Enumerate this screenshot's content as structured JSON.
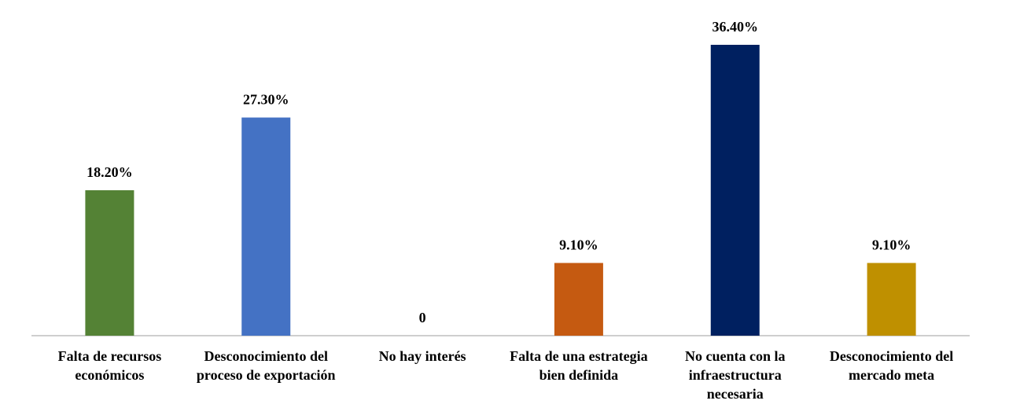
{
  "chart_data": {
    "type": "bar",
    "categories": [
      "Falta de recursos económicos",
      "Desconocimiento del proceso de exportación",
      "No hay interés",
      "Falta de una estrategia bien definida",
      "No cuenta con la infraestructura necesaria",
      "Desconocimiento del mercado meta"
    ],
    "values": [
      18.2,
      27.3,
      0,
      9.1,
      36.4,
      9.1
    ],
    "value_labels": [
      "18.20%",
      "27.30%",
      "0",
      "9.10%",
      "36.40%",
      "9.10%"
    ],
    "colors": [
      "#548235",
      "#4472c4",
      "#a5a5a5",
      "#c55a11",
      "#002060",
      "#bf9000"
    ]
  }
}
